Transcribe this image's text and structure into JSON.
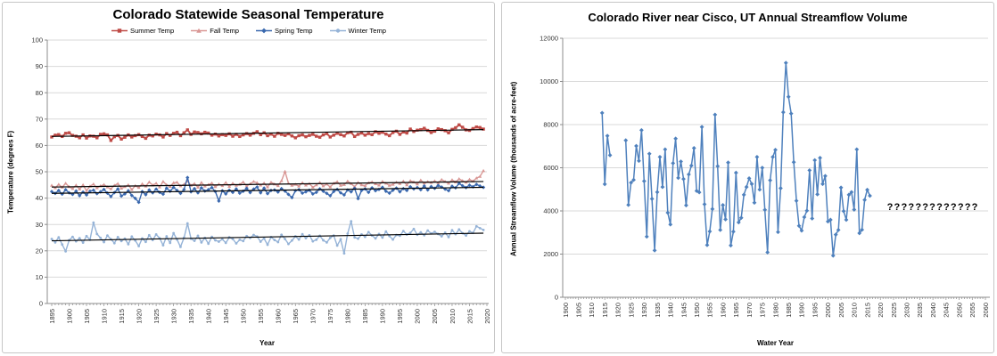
{
  "window": {
    "background": "#ffffff",
    "panel_border": "#c6c6c6",
    "grid_color": "#d9d9d9",
    "axis_color": "#8c8c8c",
    "tick_text_color": "#333333"
  },
  "chart_data": [
    {
      "type": "line",
      "title": "Colorado Statewide Seasonal Temperature",
      "xlabel": "Year",
      "ylabel": "Temperature (degrees F)",
      "xlim": [
        1895,
        2020
      ],
      "ylim": [
        0,
        100
      ],
      "y_tick_step": 10,
      "x_tick_label_step": 5,
      "grid": "horizontal",
      "legend_position": "top",
      "x_start_year": 1895,
      "series": [
        {
          "name": "Summer Temp",
          "color": "#bf4b47",
          "marker": "square",
          "values": [
            63.2,
            63.9,
            64.1,
            63.4,
            64.6,
            64.8,
            63.8,
            63.5,
            62.9,
            64.0,
            62.8,
            63.6,
            63.5,
            62.9,
            64.2,
            64.4,
            64.0,
            61.9,
            63.3,
            63.8,
            62.4,
            63.1,
            64.0,
            63.2,
            63.7,
            64.1,
            63.4,
            62.7,
            63.9,
            63.6,
            64.3,
            64.0,
            63.2,
            64.5,
            63.8,
            64.6,
            65.0,
            63.7,
            64.8,
            65.9,
            64.2,
            65.1,
            64.9,
            64.4,
            65.0,
            64.7,
            63.9,
            64.3,
            63.6,
            64.1,
            63.8,
            64.4,
            63.5,
            64.2,
            63.4,
            64.0,
            64.5,
            63.9,
            64.6,
            65.2,
            64.1,
            64.8,
            63.7,
            64.3,
            63.5,
            64.6,
            64.2,
            63.8,
            64.4,
            63.6,
            62.9,
            63.7,
            64.0,
            63.3,
            63.8,
            64.2,
            63.5,
            63.1,
            64.0,
            64.5,
            63.2,
            63.9,
            64.6,
            64.1,
            63.6,
            64.8,
            65.0,
            63.4,
            64.2,
            64.7,
            63.9,
            64.5,
            64.1,
            65.2,
            64.6,
            65.0,
            64.3,
            63.7,
            64.9,
            65.4,
            64.2,
            65.1,
            64.7,
            66.2,
            65.3,
            65.8,
            66.0,
            66.5,
            65.7,
            64.9,
            65.4,
            66.3,
            66.0,
            65.6,
            64.8,
            66.1,
            66.7,
            67.8,
            66.9,
            65.9,
            65.7,
            66.4,
            67.0,
            66.8,
            66.2
          ]
        },
        {
          "name": "Fall Temp",
          "color": "#d99795",
          "marker": "triangle",
          "values": [
            44.8,
            43.9,
            45.2,
            44.1,
            45.6,
            44.3,
            43.6,
            44.9,
            43.4,
            45.0,
            42.8,
            44.5,
            45.3,
            43.9,
            44.6,
            45.1,
            44.2,
            43.5,
            44.8,
            45.5,
            43.7,
            44.3,
            45.0,
            43.2,
            44.7,
            44.0,
            45.4,
            44.5,
            46.1,
            44.9,
            45.6,
            44.2,
            46.3,
            45.0,
            44.4,
            45.8,
            46.0,
            44.6,
            45.2,
            46.5,
            44.8,
            45.5,
            44.1,
            45.9,
            44.5,
            45.1,
            45.7,
            44.3,
            45.3,
            44.7,
            45.9,
            44.4,
            45.6,
            44.8,
            45.2,
            46.1,
            44.6,
            45.4,
            46.3,
            45.8,
            44.9,
            45.7,
            44.2,
            46.0,
            45.3,
            44.7,
            46.6,
            50.1,
            45.6,
            44.8,
            45.2,
            44.5,
            45.8,
            44.9,
            45.5,
            44.1,
            45.0,
            45.9,
            44.6,
            45.3,
            44.2,
            45.6,
            46.2,
            44.8,
            45.1,
            46.4,
            45.5,
            44.3,
            45.9,
            45.0,
            44.7,
            45.8,
            46.1,
            45.4,
            44.9,
            46.3,
            45.6,
            44.8,
            45.2,
            46.0,
            45.5,
            46.4,
            45.0,
            46.6,
            46.1,
            45.3,
            46.8,
            45.7,
            46.2,
            45.9,
            46.5,
            45.8,
            47.0,
            46.3,
            45.6,
            46.9,
            46.1,
            47.3,
            46.6,
            46.0,
            47.1,
            46.4,
            47.6,
            48.2,
            50.4
          ]
        },
        {
          "name": "Spring Temp",
          "color": "#3a68ae",
          "marker": "diamond",
          "values": [
            42.5,
            41.8,
            42.9,
            41.5,
            43.2,
            42.0,
            41.4,
            42.7,
            40.9,
            42.3,
            41.2,
            42.6,
            43.0,
            41.7,
            42.4,
            43.3,
            41.9,
            40.6,
            42.1,
            43.5,
            40.8,
            41.6,
            42.8,
            41.0,
            39.9,
            38.4,
            42.5,
            41.3,
            43.1,
            42.0,
            43.4,
            42.2,
            41.5,
            43.8,
            42.6,
            44.1,
            42.9,
            41.8,
            43.3,
            47.8,
            42.4,
            43.6,
            42.0,
            43.9,
            42.7,
            43.2,
            44.0,
            42.5,
            38.9,
            42.8,
            41.6,
            43.0,
            42.2,
            43.5,
            41.9,
            42.6,
            43.7,
            42.1,
            43.4,
            44.2,
            42.0,
            43.8,
            41.7,
            42.9,
            43.1,
            42.3,
            43.6,
            42.7,
            41.4,
            40.2,
            42.8,
            43.2,
            41.9,
            42.4,
            43.0,
            41.6,
            42.2,
            43.5,
            42.6,
            41.8,
            40.9,
            42.5,
            43.3,
            42.0,
            41.2,
            43.1,
            42.4,
            43.7,
            39.8,
            42.9,
            43.5,
            42.2,
            43.9,
            42.8,
            43.3,
            44.1,
            42.6,
            41.9,
            43.0,
            43.8,
            42.4,
            43.6,
            42.9,
            44.3,
            43.5,
            44.0,
            43.2,
            44.6,
            43.1,
            44.4,
            43.7,
            44.8,
            44.2,
            43.4,
            42.8,
            44.5,
            43.9,
            45.6,
            44.7,
            44.0,
            44.9,
            44.3,
            45.2,
            44.6,
            44.1
          ]
        },
        {
          "name": "Winter Temp",
          "color": "#95b3d7",
          "marker": "circle",
          "values": [
            24.5,
            23.2,
            25.1,
            22.4,
            19.8,
            24.0,
            25.3,
            23.6,
            24.8,
            23.1,
            25.6,
            24.2,
            30.7,
            26.4,
            24.9,
            23.3,
            25.8,
            24.4,
            22.9,
            25.2,
            23.7,
            24.6,
            22.5,
            25.4,
            23.9,
            21.8,
            24.7,
            23.4,
            25.9,
            24.1,
            26.2,
            24.8,
            22.1,
            25.5,
            23.0,
            26.7,
            24.3,
            21.5,
            25.0,
            30.4,
            24.6,
            23.8,
            25.7,
            23.2,
            24.9,
            22.7,
            25.3,
            24.0,
            23.5,
            24.4,
            23.0,
            25.1,
            24.5,
            22.8,
            24.2,
            23.7,
            25.6,
            24.9,
            26.0,
            25.4,
            23.5,
            24.7,
            22.3,
            25.2,
            24.1,
            23.3,
            26.1,
            24.5,
            22.6,
            23.9,
            25.5,
            24.3,
            26.3,
            24.8,
            25.9,
            23.6,
            24.2,
            25.7,
            24.0,
            23.2,
            24.9,
            25.8,
            22.0,
            24.4,
            19.0,
            26.5,
            31.2,
            25.1,
            24.6,
            26.2,
            25.3,
            27.1,
            25.8,
            24.7,
            26.4,
            25.0,
            27.3,
            25.6,
            24.3,
            26.0,
            25.7,
            27.5,
            26.2,
            26.8,
            28.3,
            26.1,
            27.0,
            25.9,
            27.7,
            26.6,
            27.2,
            26.4,
            25.5,
            26.9,
            25.2,
            27.8,
            26.3,
            28.1,
            26.7,
            25.8,
            27.4,
            26.8,
            29.3,
            28.6,
            27.9
          ]
        }
      ],
      "trendlines": [
        {
          "series": "Summer Temp",
          "color": "#000000",
          "start_value": 63.4,
          "end_value": 66.0
        },
        {
          "series": "Fall Temp",
          "color": "#000000",
          "start_value": 44.2,
          "end_value": 46.3
        },
        {
          "series": "Spring Temp",
          "color": "#000000",
          "start_value": 41.8,
          "end_value": 44.1
        },
        {
          "series": "Winter Temp",
          "color": "#000000",
          "start_value": 23.8,
          "end_value": 26.7
        }
      ]
    },
    {
      "type": "line",
      "title": "Colorado River near Cisco, UT Annual Streamflow Volume",
      "xlabel": "Water Year",
      "ylabel": "Annual Streamflow Volume (thousands of acre-feet)",
      "xlim": [
        1900,
        2060
      ],
      "ylim": [
        0,
        12000
      ],
      "y_tick_step": 2000,
      "x_tick_label_step": 5,
      "grid": "horizontal",
      "legend_position": "none",
      "series": [
        {
          "name": "Annual Streamflow Volume",
          "color": "#4f81bd",
          "marker": "diamond",
          "years": [
            1914,
            1915,
            1916,
            1917,
            1923,
            1924,
            1925,
            1926,
            1927,
            1928,
            1929,
            1930,
            1931,
            1932,
            1933,
            1934,
            1935,
            1936,
            1937,
            1938,
            1939,
            1940,
            1941,
            1942,
            1943,
            1944,
            1945,
            1946,
            1947,
            1948,
            1949,
            1950,
            1951,
            1952,
            1953,
            1954,
            1955,
            1956,
            1957,
            1958,
            1959,
            1960,
            1961,
            1962,
            1963,
            1964,
            1965,
            1966,
            1967,
            1968,
            1969,
            1970,
            1971,
            1972,
            1973,
            1974,
            1975,
            1976,
            1977,
            1978,
            1979,
            1980,
            1981,
            1982,
            1983,
            1984,
            1985,
            1986,
            1987,
            1988,
            1989,
            1990,
            1991,
            1992,
            1993,
            1994,
            1995,
            1996,
            1997,
            1998,
            1999,
            2000,
            2001,
            2002,
            2003,
            2004,
            2005,
            2006,
            2007,
            2008,
            2009,
            2010,
            2011,
            2012,
            2013,
            2014,
            2015,
            2016
          ],
          "values": [
            8540,
            5240,
            7480,
            6580,
            7270,
            4280,
            5310,
            5440,
            7010,
            6320,
            7740,
            5380,
            2810,
            6650,
            4560,
            2170,
            4870,
            6500,
            5110,
            6850,
            3920,
            3370,
            6210,
            7350,
            5530,
            6290,
            5480,
            4260,
            5690,
            6100,
            6910,
            4930,
            4860,
            7890,
            4310,
            2420,
            3050,
            4090,
            8460,
            6070,
            3120,
            4270,
            3610,
            6240,
            2400,
            3040,
            5770,
            3470,
            3680,
            4750,
            5110,
            5510,
            5250,
            4380,
            6500,
            4990,
            6000,
            4050,
            2080,
            5420,
            6500,
            6830,
            3020,
            5050,
            8570,
            10860,
            9290,
            8510,
            6260,
            4470,
            3310,
            3090,
            3710,
            4010,
            5880,
            3650,
            6350,
            4770,
            6460,
            5250,
            5620,
            3510,
            3590,
            1930,
            2900,
            3120,
            5080,
            3990,
            3590,
            4750,
            4870,
            4060,
            6850,
            2970,
            3130,
            4510,
            4980,
            4700
          ]
        }
      ],
      "annotation": {
        "text": "?????????????",
        "x": 2040,
        "y": 4200,
        "color": "#000000"
      }
    }
  ]
}
